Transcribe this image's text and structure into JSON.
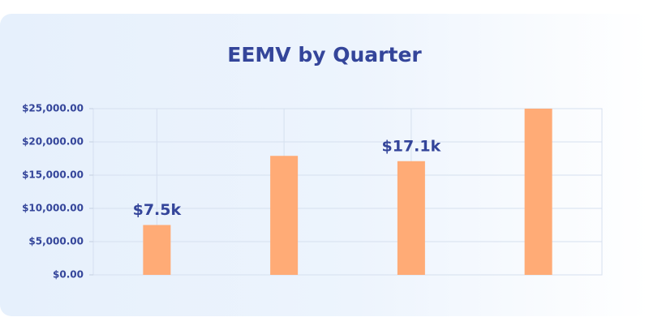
{
  "chart_data": {
    "type": "bar",
    "title": "EEMV by Quarter",
    "categories": [
      null,
      null,
      null,
      null
    ],
    "values": [
      7500,
      17900,
      17100,
      25000
    ],
    "value_labels": [
      "$7.5k",
      null,
      "$17.1k",
      null
    ],
    "color": "#ffab76",
    "ylim": [
      0,
      25000
    ],
    "yticks": [
      {
        "value": 0,
        "label": "$0.00"
      },
      {
        "value": 5000,
        "label": "$5,000.00"
      },
      {
        "value": 10000,
        "label": "$10,000.00"
      },
      {
        "value": 15000,
        "label": "$15,000.00"
      },
      {
        "value": 20000,
        "label": "$20,000.00"
      },
      {
        "value": 25000,
        "label": "$25,000.00"
      }
    ],
    "grid": true
  }
}
